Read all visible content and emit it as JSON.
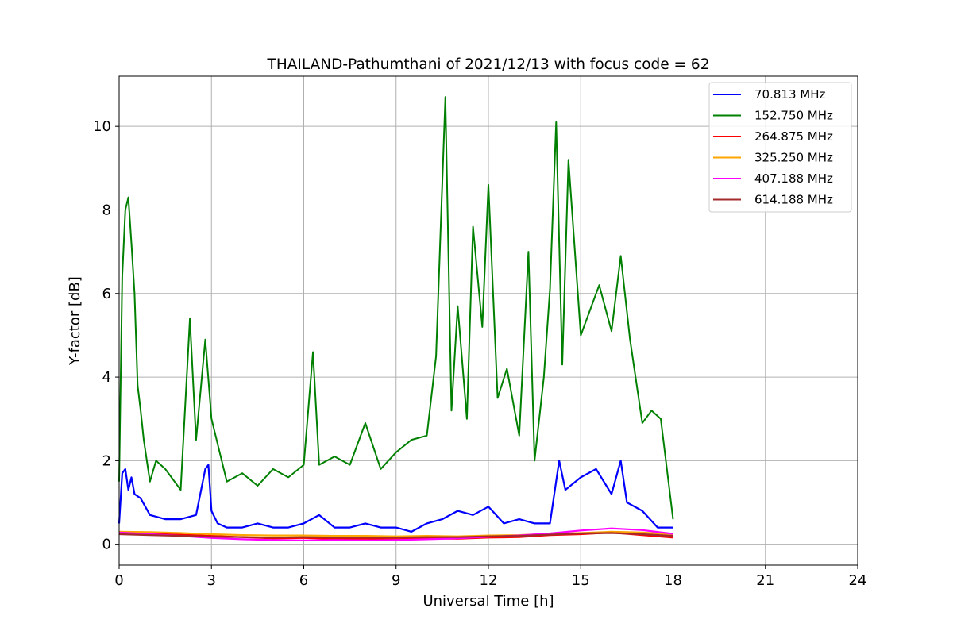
{
  "chart_data": {
    "type": "line",
    "title": "THAILAND-Pathumthani of 2021/12/13 with focus code = 62",
    "xlabel": "Universal Time [h]",
    "ylabel": "Y-factor [dB]",
    "xlim": [
      0,
      24
    ],
    "ylim": [
      -0.5,
      11.2
    ],
    "xticks": [
      0,
      3,
      6,
      9,
      12,
      15,
      18,
      21,
      24
    ],
    "yticks": [
      0,
      2,
      4,
      6,
      8,
      10
    ],
    "grid": true,
    "legend_position": "top-right",
    "series": [
      {
        "name": " 70.813 MHz",
        "color": "#0000ff",
        "x": [
          0,
          0.1,
          0.2,
          0.3,
          0.4,
          0.5,
          0.7,
          1.0,
          1.5,
          2.0,
          2.5,
          2.8,
          2.9,
          3.0,
          3.2,
          3.5,
          4.0,
          4.5,
          5.0,
          5.5,
          6.0,
          6.5,
          7.0,
          7.5,
          8.0,
          8.5,
          9.0,
          9.5,
          10.0,
          10.5,
          11.0,
          11.5,
          12.0,
          12.5,
          13.0,
          13.5,
          14.0,
          14.3,
          14.5,
          15.0,
          15.5,
          16.0,
          16.3,
          16.5,
          17.0,
          17.5,
          18.0
        ],
        "y": [
          0.5,
          1.7,
          1.8,
          1.3,
          1.6,
          1.2,
          1.1,
          0.7,
          0.6,
          0.6,
          0.7,
          1.8,
          1.9,
          0.8,
          0.5,
          0.4,
          0.4,
          0.5,
          0.4,
          0.4,
          0.5,
          0.7,
          0.4,
          0.4,
          0.5,
          0.4,
          0.4,
          0.3,
          0.5,
          0.6,
          0.8,
          0.7,
          0.9,
          0.5,
          0.6,
          0.5,
          0.5,
          2.0,
          1.3,
          1.6,
          1.8,
          1.2,
          2.0,
          1.0,
          0.8,
          0.4,
          0.4
        ]
      },
      {
        "name": "152.750 MHz",
        "color": "#008000",
        "x": [
          0,
          0.1,
          0.2,
          0.3,
          0.4,
          0.5,
          0.6,
          0.7,
          0.8,
          1.0,
          1.2,
          1.5,
          2.0,
          2.3,
          2.5,
          2.8,
          3.0,
          3.5,
          4.0,
          4.5,
          5.0,
          5.5,
          6.0,
          6.3,
          6.5,
          7.0,
          7.5,
          8.0,
          8.5,
          9.0,
          9.5,
          10.0,
          10.3,
          10.6,
          10.8,
          11.0,
          11.3,
          11.5,
          11.8,
          12.0,
          12.3,
          12.6,
          13.0,
          13.3,
          13.5,
          13.8,
          14.0,
          14.2,
          14.4,
          14.6,
          15.0,
          15.3,
          15.6,
          16.0,
          16.3,
          16.6,
          17.0,
          17.3,
          17.6,
          18.0
        ],
        "y": [
          1.5,
          6.4,
          8.0,
          8.3,
          7.2,
          6.0,
          3.8,
          3.2,
          2.5,
          1.5,
          2.0,
          1.8,
          1.3,
          5.4,
          2.5,
          4.9,
          3.0,
          1.5,
          1.7,
          1.4,
          1.8,
          1.6,
          1.9,
          4.6,
          1.9,
          2.1,
          1.9,
          2.9,
          1.8,
          2.2,
          2.5,
          2.6,
          4.5,
          10.7,
          3.2,
          5.7,
          3.0,
          7.6,
          5.2,
          8.6,
          3.5,
          4.2,
          2.6,
          7.0,
          2.0,
          4.0,
          6.1,
          10.1,
          4.3,
          9.2,
          5.0,
          5.6,
          6.2,
          5.1,
          6.9,
          4.9,
          2.9,
          3.2,
          3.0,
          0.6
        ]
      },
      {
        "name": "264.875 MHz",
        "color": "#ff0000",
        "x": [
          0,
          1,
          2,
          3,
          4,
          5,
          6,
          7,
          8,
          9,
          10,
          11,
          12,
          13,
          14,
          15,
          16,
          17,
          18
        ],
        "y": [
          0.26,
          0.25,
          0.23,
          0.2,
          0.17,
          0.14,
          0.15,
          0.13,
          0.13,
          0.12,
          0.14,
          0.13,
          0.16,
          0.17,
          0.22,
          0.24,
          0.28,
          0.22,
          0.16
        ]
      },
      {
        "name": "325.250 MHz",
        "color": "#ffa500",
        "x": [
          0,
          1,
          2,
          3,
          4,
          5,
          6,
          7,
          8,
          9,
          10,
          11,
          12,
          13,
          14,
          15,
          16,
          17,
          18
        ],
        "y": [
          0.3,
          0.29,
          0.27,
          0.24,
          0.22,
          0.21,
          0.21,
          0.2,
          0.2,
          0.19,
          0.2,
          0.19,
          0.21,
          0.22,
          0.25,
          0.27,
          0.3,
          0.28,
          0.24
        ]
      },
      {
        "name": "407.188 MHz",
        "color": "#ff00ff",
        "x": [
          0,
          1,
          2,
          3,
          4,
          5,
          6,
          7,
          8,
          9,
          10,
          11,
          12,
          13,
          14,
          15,
          16,
          17,
          18
        ],
        "y": [
          0.28,
          0.24,
          0.2,
          0.15,
          0.12,
          0.1,
          0.09,
          0.1,
          0.09,
          0.1,
          0.12,
          0.14,
          0.18,
          0.21,
          0.26,
          0.33,
          0.38,
          0.34,
          0.25
        ]
      },
      {
        "name": "614.188 MHz",
        "color": "#a52a2a",
        "x": [
          0,
          1,
          2,
          3,
          4,
          5,
          6,
          7,
          8,
          9,
          10,
          11,
          12,
          13,
          14,
          15,
          16,
          17,
          18
        ],
        "y": [
          0.24,
          0.22,
          0.2,
          0.18,
          0.17,
          0.16,
          0.17,
          0.16,
          0.16,
          0.16,
          0.17,
          0.17,
          0.19,
          0.2,
          0.23,
          0.26,
          0.27,
          0.24,
          0.2
        ]
      }
    ]
  }
}
